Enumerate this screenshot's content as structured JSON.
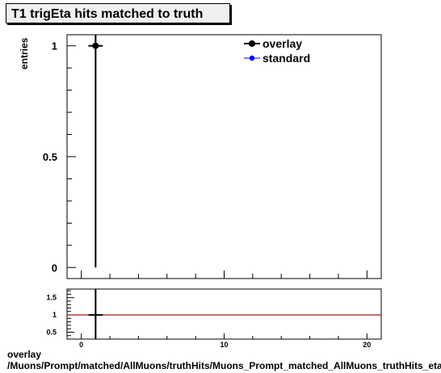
{
  "title": "T1 trigEta hits matched to truth",
  "ylabel": "entries",
  "footer_line1": "overlay",
  "footer_line2": "/Muons/Prompt/matched/AllMuons/truthHits/Muons_Prompt_matched_AllMuons_truthHits_etaHits",
  "chart_data": [
    {
      "type": "line",
      "panel": "main",
      "xlim": [
        -1,
        21
      ],
      "ylim": [
        -0.05,
        1.05
      ],
      "ytick_labels": [
        "0",
        "0.5",
        "1"
      ],
      "yticks": [
        0,
        0.5,
        1
      ],
      "legend": "top-right",
      "series": [
        {
          "name": "overlay",
          "color": "#000000",
          "points": [
            {
              "x": 1,
              "y": 1,
              "ylo": 0,
              "yhi": 1.0,
              "xlo": 0.5,
              "xhi": 1.5
            }
          ]
        },
        {
          "name": "standard",
          "color": "#0000ff",
          "points": []
        }
      ]
    },
    {
      "type": "line",
      "panel": "ratio",
      "xlim": [
        -1,
        21
      ],
      "ylim": [
        0.3,
        1.75
      ],
      "xticks": [
        0,
        10,
        20
      ],
      "xtick_labels": [
        "0",
        "10",
        "20"
      ],
      "yticks": [
        0.5,
        1,
        1.5
      ],
      "ytick_labels": [
        "0.5",
        "1",
        "1.5"
      ],
      "reference_line": 1,
      "reference_color": "#990000",
      "points": [
        {
          "x": 1,
          "y": 1,
          "xlo": 0.5,
          "xhi": 1.5
        }
      ]
    }
  ]
}
